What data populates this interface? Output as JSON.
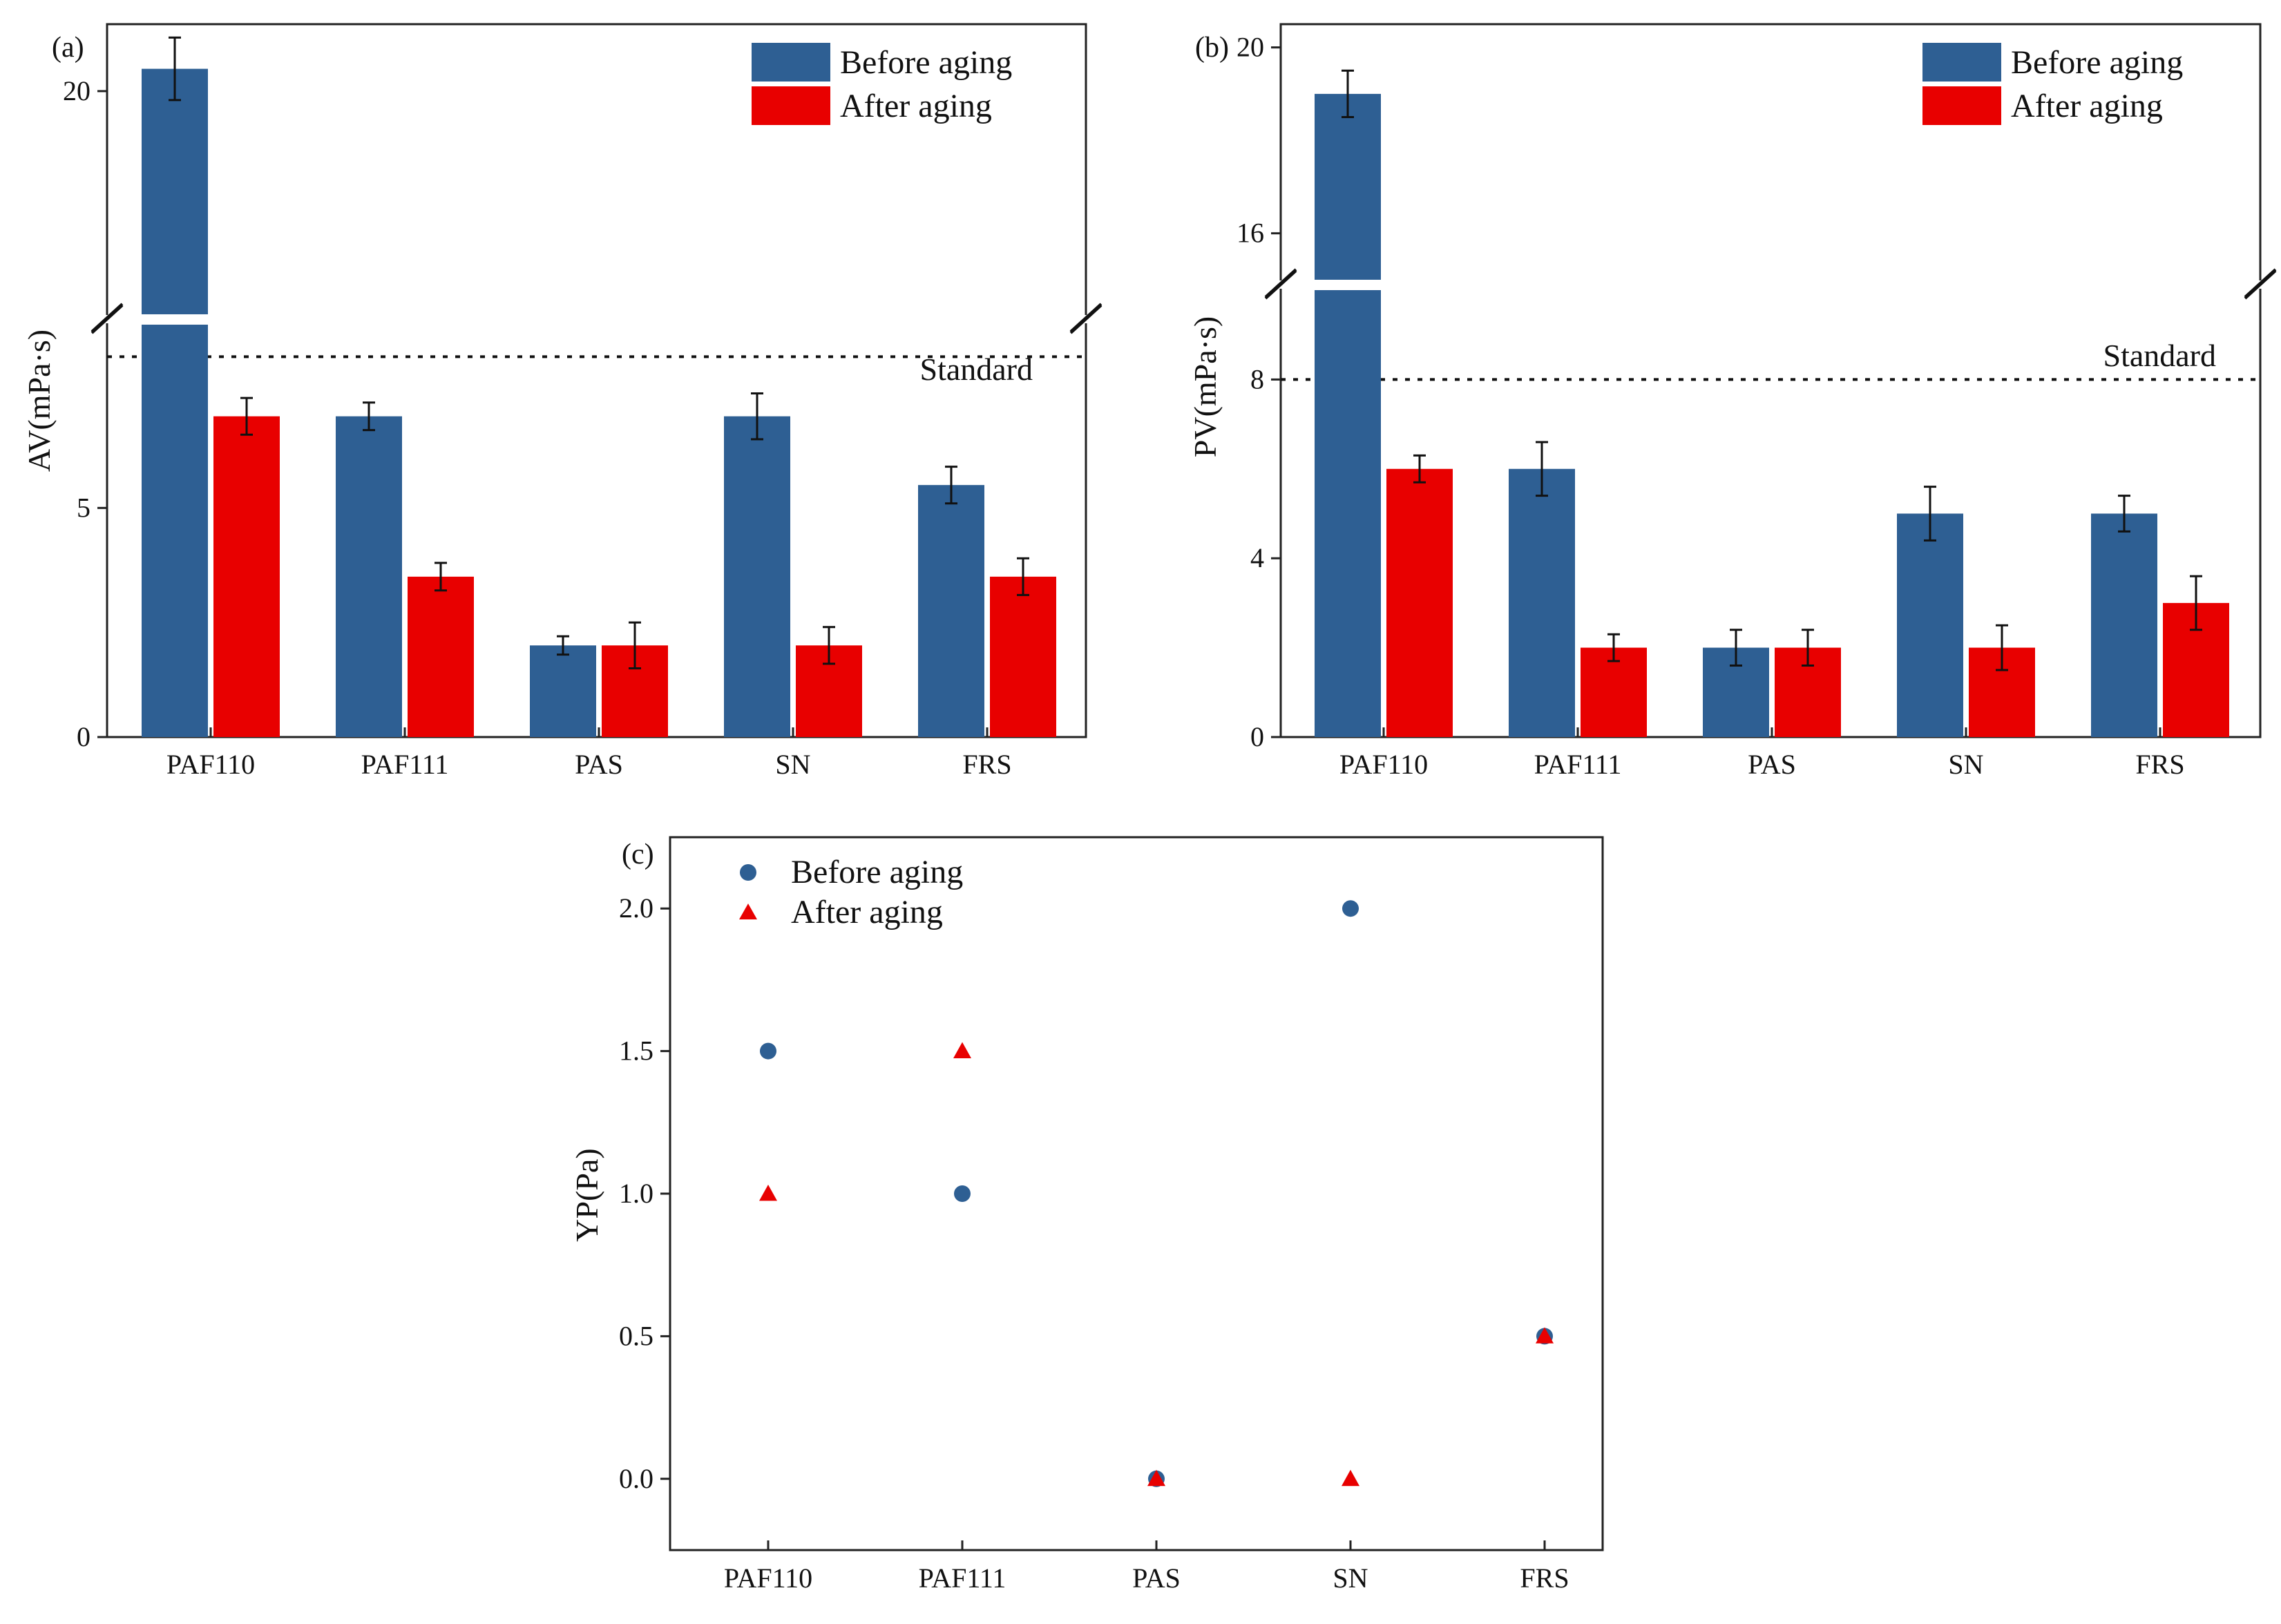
{
  "chart_data": [
    {
      "type": "bar",
      "panel": "(a)",
      "ylabel": "AV(mPa·s)",
      "xlabel": "",
      "categories": [
        "PAF110",
        "PAF111",
        "PAS",
        "SN",
        "FRS"
      ],
      "series": [
        {
          "name": "Before aging",
          "color": "#2e5f93",
          "values": [
            20.5,
            7.0,
            2.0,
            7.0,
            5.5
          ],
          "errors": [
            0.7,
            0.3,
            0.2,
            0.5,
            0.4
          ]
        },
        {
          "name": "After aging",
          "color": "#e80000",
          "values": [
            7.0,
            3.5,
            2.0,
            2.0,
            3.5
          ],
          "errors": [
            0.4,
            0.3,
            0.5,
            0.4,
            0.4
          ]
        }
      ],
      "broken_axis": true,
      "ylim_lower": [
        0,
        9
      ],
      "ylim_upper": [
        15,
        21.5
      ],
      "yticks_lower": [
        "0",
        "5"
      ],
      "yticks_upper": [
        "20"
      ],
      "yticks_lower_values": [
        0,
        5
      ],
      "yticks_upper_values": [
        20
      ],
      "standard_line": {
        "label": "Standard",
        "value": 8.3
      }
    },
    {
      "type": "bar",
      "panel": "(b)",
      "ylabel": "PV(mPa·s)",
      "xlabel": "",
      "categories": [
        "PAF110",
        "PAF111",
        "PAS",
        "SN",
        "FRS"
      ],
      "series": [
        {
          "name": "Before aging",
          "color": "#2e5f93",
          "values": [
            19.0,
            6.0,
            2.0,
            5.0,
            5.0
          ],
          "errors": [
            0.5,
            0.6,
            0.4,
            0.6,
            0.4
          ]
        },
        {
          "name": "After aging",
          "color": "#e80000",
          "values": [
            6.0,
            2.0,
            2.0,
            2.0,
            3.0
          ],
          "errors": [
            0.3,
            0.3,
            0.4,
            0.5,
            0.6
          ]
        }
      ],
      "broken_axis": true,
      "ylim_lower": [
        0,
        10
      ],
      "ylim_upper": [
        15,
        20.5
      ],
      "yticks_lower": [
        "0",
        "4",
        "8"
      ],
      "yticks_upper": [
        "16",
        "20"
      ],
      "yticks_lower_values": [
        0,
        4,
        8
      ],
      "yticks_upper_values": [
        16,
        20
      ],
      "standard_line": {
        "label": "Standard",
        "value": 8.0
      }
    },
    {
      "type": "scatter",
      "panel": "(c)",
      "ylabel": "YP(Pa)",
      "xlabel": "",
      "categories": [
        "PAF110",
        "PAF111",
        "PAS",
        "SN",
        "FRS"
      ],
      "series": [
        {
          "name": "Before aging",
          "marker": "circle",
          "color": "#2e5f93",
          "values": [
            1.5,
            1.0,
            0.0,
            2.0,
            0.5
          ]
        },
        {
          "name": "After aging",
          "marker": "triangle",
          "color": "#e80000",
          "values": [
            1.0,
            1.5,
            0.0,
            0.0,
            0.5
          ]
        }
      ],
      "ylim": [
        -0.25,
        2.25
      ],
      "yticks": [
        "0.0",
        "0.5",
        "1.0",
        "1.5",
        "2.0"
      ],
      "ytick_values": [
        0,
        0.5,
        1.0,
        1.5,
        2.0
      ]
    }
  ]
}
